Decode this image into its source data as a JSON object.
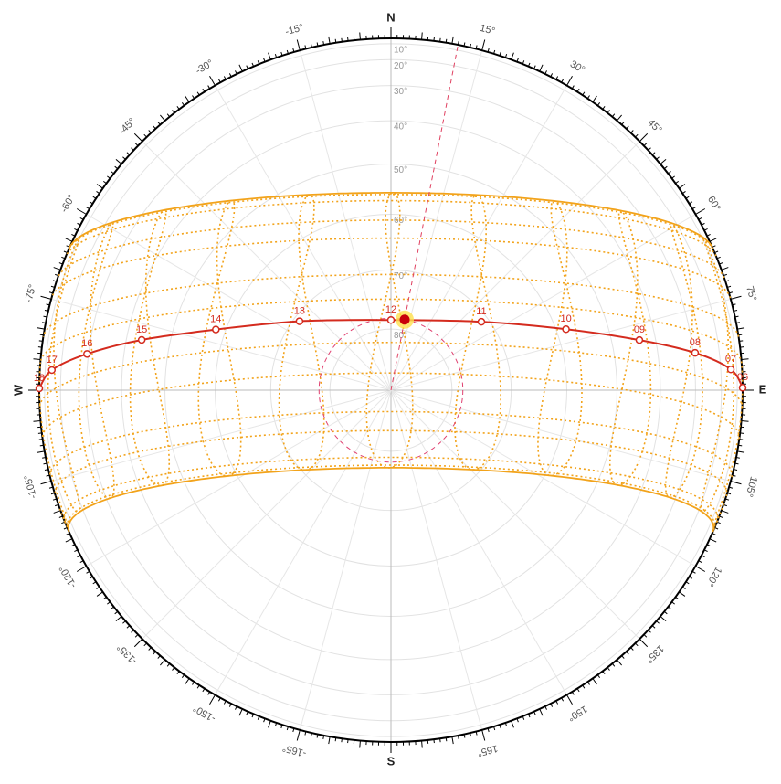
{
  "chart_data": {
    "type": "sunpath",
    "compass": [
      {
        "value": 0,
        "label": "N"
      },
      {
        "value": 90,
        "label": "E"
      },
      {
        "value": 180,
        "label": "S"
      },
      {
        "value": -90,
        "label": "W"
      }
    ],
    "azimuth_ticks": [
      {
        "value": 15,
        "label": "15°"
      },
      {
        "value": 30,
        "label": "30°"
      },
      {
        "value": 45,
        "label": "45°"
      },
      {
        "value": 60,
        "label": "60°"
      },
      {
        "value": 75,
        "label": "75°"
      },
      {
        "value": 105,
        "label": "105°"
      },
      {
        "value": 120,
        "label": "120°"
      },
      {
        "value": 135,
        "label": "135°"
      },
      {
        "value": 150,
        "label": "150°"
      },
      {
        "value": 165,
        "label": "165°"
      },
      {
        "value": -15,
        "label": "-15°"
      },
      {
        "value": -30,
        "label": "-30°"
      },
      {
        "value": -45,
        "label": "-45°"
      },
      {
        "value": -60,
        "label": "-60°"
      },
      {
        "value": -75,
        "label": "-75°"
      },
      {
        "value": -105,
        "label": "-105°"
      },
      {
        "value": -120,
        "label": "-120°"
      },
      {
        "value": -135,
        "label": "-135°"
      },
      {
        "value": -150,
        "label": "-150°"
      },
      {
        "value": -165,
        "label": "-165°"
      }
    ],
    "altitude_ticks": [
      {
        "value": 10,
        "label": "10°"
      },
      {
        "value": 20,
        "label": "20°"
      },
      {
        "value": 30,
        "label": "30°"
      },
      {
        "value": 40,
        "label": "40°"
      },
      {
        "value": 50,
        "label": "50°"
      },
      {
        "value": 60,
        "label": "60°"
      },
      {
        "value": 70,
        "label": "70°"
      },
      {
        "value": 80,
        "label": "80°"
      }
    ],
    "latitude": -10.7,
    "solstice_declinations": [
      23.44,
      -23.44
    ],
    "monthly_declinations": [
      -23.0,
      -17.3,
      -7.9,
      4.3,
      14.9,
      21.9,
      23.1,
      18.2,
      8.5,
      -2.9,
      -14.2,
      -21.7
    ],
    "hours": {
      "labels": [
        "06",
        "07",
        "08",
        "09",
        "10",
        "11",
        "12",
        "13",
        "14",
        "15",
        "16",
        "17",
        "18"
      ],
      "azimuth": [
        89.6,
        86.5,
        83,
        78.6,
        70.8,
        52.9,
        0,
        -53,
        -70.9,
        -78.6,
        -83.2,
        -86.6,
        -89.7
      ],
      "altitude": [
        0.2,
        14.5,
        29.4,
        43.9,
        58.2,
        71.2,
        78.5,
        71,
        58.2,
        43.7,
        29.5,
        15,
        0.5
      ]
    },
    "sun": {
      "azimuth": 11,
      "altitude": 78.2
    },
    "colors": {
      "path": "#d42b1e",
      "year": "#f2a31b",
      "sun": "#ffe14d"
    }
  }
}
